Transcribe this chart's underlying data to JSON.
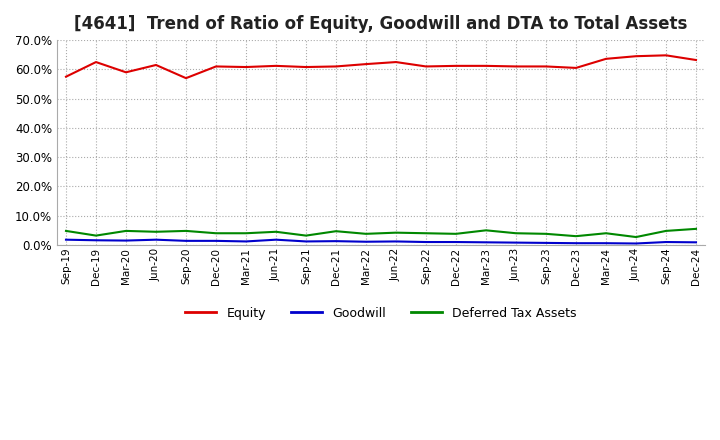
{
  "title": "[4641]  Trend of Ratio of Equity, Goodwill and DTA to Total Assets",
  "x_labels": [
    "Sep-19",
    "Dec-19",
    "Mar-20",
    "Jun-20",
    "Sep-20",
    "Dec-20",
    "Mar-21",
    "Jun-21",
    "Sep-21",
    "Dec-21",
    "Mar-22",
    "Jun-22",
    "Sep-22",
    "Dec-22",
    "Mar-23",
    "Jun-23",
    "Sep-23",
    "Dec-23",
    "Mar-24",
    "Jun-24",
    "Sep-24",
    "Dec-24"
  ],
  "equity": [
    0.575,
    0.625,
    0.59,
    0.615,
    0.57,
    0.61,
    0.608,
    0.612,
    0.608,
    0.61,
    0.618,
    0.625,
    0.61,
    0.612,
    0.612,
    0.61,
    0.61,
    0.605,
    0.636,
    0.645,
    0.648,
    0.632
  ],
  "goodwill": [
    0.018,
    0.016,
    0.015,
    0.018,
    0.014,
    0.014,
    0.012,
    0.018,
    0.012,
    0.013,
    0.011,
    0.012,
    0.01,
    0.01,
    0.009,
    0.008,
    0.007,
    0.006,
    0.006,
    0.005,
    0.01,
    0.009
  ],
  "dta": [
    0.048,
    0.032,
    0.048,
    0.045,
    0.048,
    0.04,
    0.04,
    0.045,
    0.032,
    0.047,
    0.038,
    0.042,
    0.04,
    0.038,
    0.05,
    0.04,
    0.038,
    0.03,
    0.04,
    0.027,
    0.048,
    0.055
  ],
  "equity_color": "#dd0000",
  "goodwill_color": "#0000cc",
  "dta_color": "#008800",
  "ylim": [
    0.0,
    0.7
  ],
  "yticks": [
    0.0,
    0.1,
    0.2,
    0.3,
    0.4,
    0.5,
    0.6,
    0.7
  ],
  "background_color": "#ffffff",
  "grid_color": "#aaaaaa",
  "title_fontsize": 12,
  "legend_labels": [
    "Equity",
    "Goodwill",
    "Deferred Tax Assets"
  ]
}
